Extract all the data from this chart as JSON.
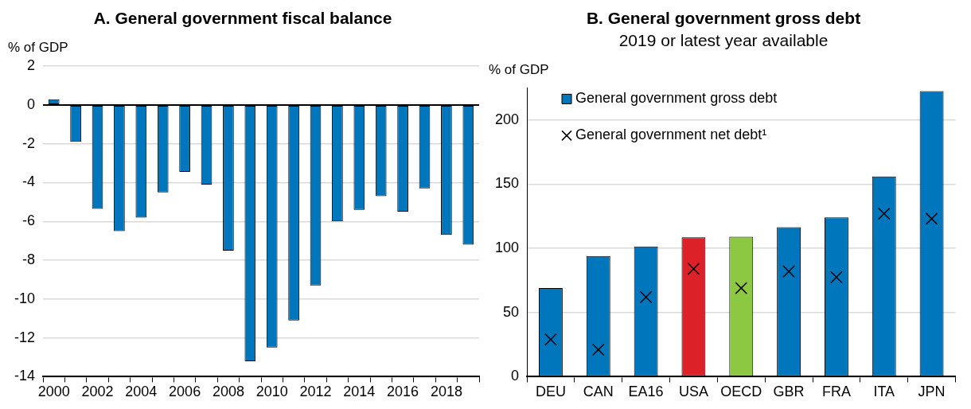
{
  "chart_data": [
    {
      "type": "bar",
      "title": "A. General government fiscal balance",
      "ylabel": "% of GDP",
      "categories": [
        "2000",
        null,
        "2002",
        null,
        "2004",
        null,
        "2006",
        null,
        "2008",
        null,
        "2010",
        null,
        "2012",
        null,
        "2014",
        null,
        "2016",
        null,
        "2018",
        null
      ],
      "series": [
        {
          "color": "#0077bd",
          "values": [
            0.3,
            -1.9,
            -5.35,
            -6.5,
            -5.8,
            -4.5,
            -3.45,
            -4.1,
            -7.5,
            -13.2,
            -12.5,
            -11.1,
            -9.3,
            -6.0,
            -5.4,
            -4.7,
            -5.5,
            -4.3,
            -6.7,
            -7.2
          ]
        }
      ],
      "ylim": [
        -14,
        2
      ],
      "yticks": [
        -14,
        -12,
        -10,
        -8,
        -6,
        -4,
        -2,
        0,
        2
      ],
      "grid": "y"
    },
    {
      "type": "bar",
      "title": "B. General government gross debt",
      "subtitle": "2019 or latest year available",
      "ylabel": "% of GDP",
      "categories": [
        "DEU",
        "CAN",
        "EA16",
        "USA",
        "OECD",
        "GBR",
        "FRA",
        "ITA",
        "JPN"
      ],
      "series": [
        {
          "name": "General government gross debt",
          "color": "#0077bd",
          "colors": [
            "#0077bd",
            "#0077bd",
            "#0077bd",
            "#dc2128",
            "#8cc841",
            "#0077bd",
            "#0077bd",
            "#0077bd",
            "#0077bd"
          ],
          "values": [
            69,
            94,
            101.5,
            108.5,
            109,
            116.5,
            124,
            156,
            222.5
          ]
        },
        {
          "name": "General government net debt¹",
          "type": "scatter",
          "color": "#000000",
          "marker": "cross",
          "x": [
            "DEU",
            "CAN",
            "EA16",
            "USA",
            "OECD",
            "GBR",
            "FRA",
            "ITA",
            "JPN"
          ],
          "values": [
            29,
            21,
            62,
            84,
            69,
            82,
            77.5,
            127,
            123
          ]
        }
      ],
      "ylim": [
        0,
        225
      ],
      "yticks": [
        0,
        50,
        100,
        150,
        200
      ],
      "grid": "y",
      "legend": "top left"
    }
  ]
}
